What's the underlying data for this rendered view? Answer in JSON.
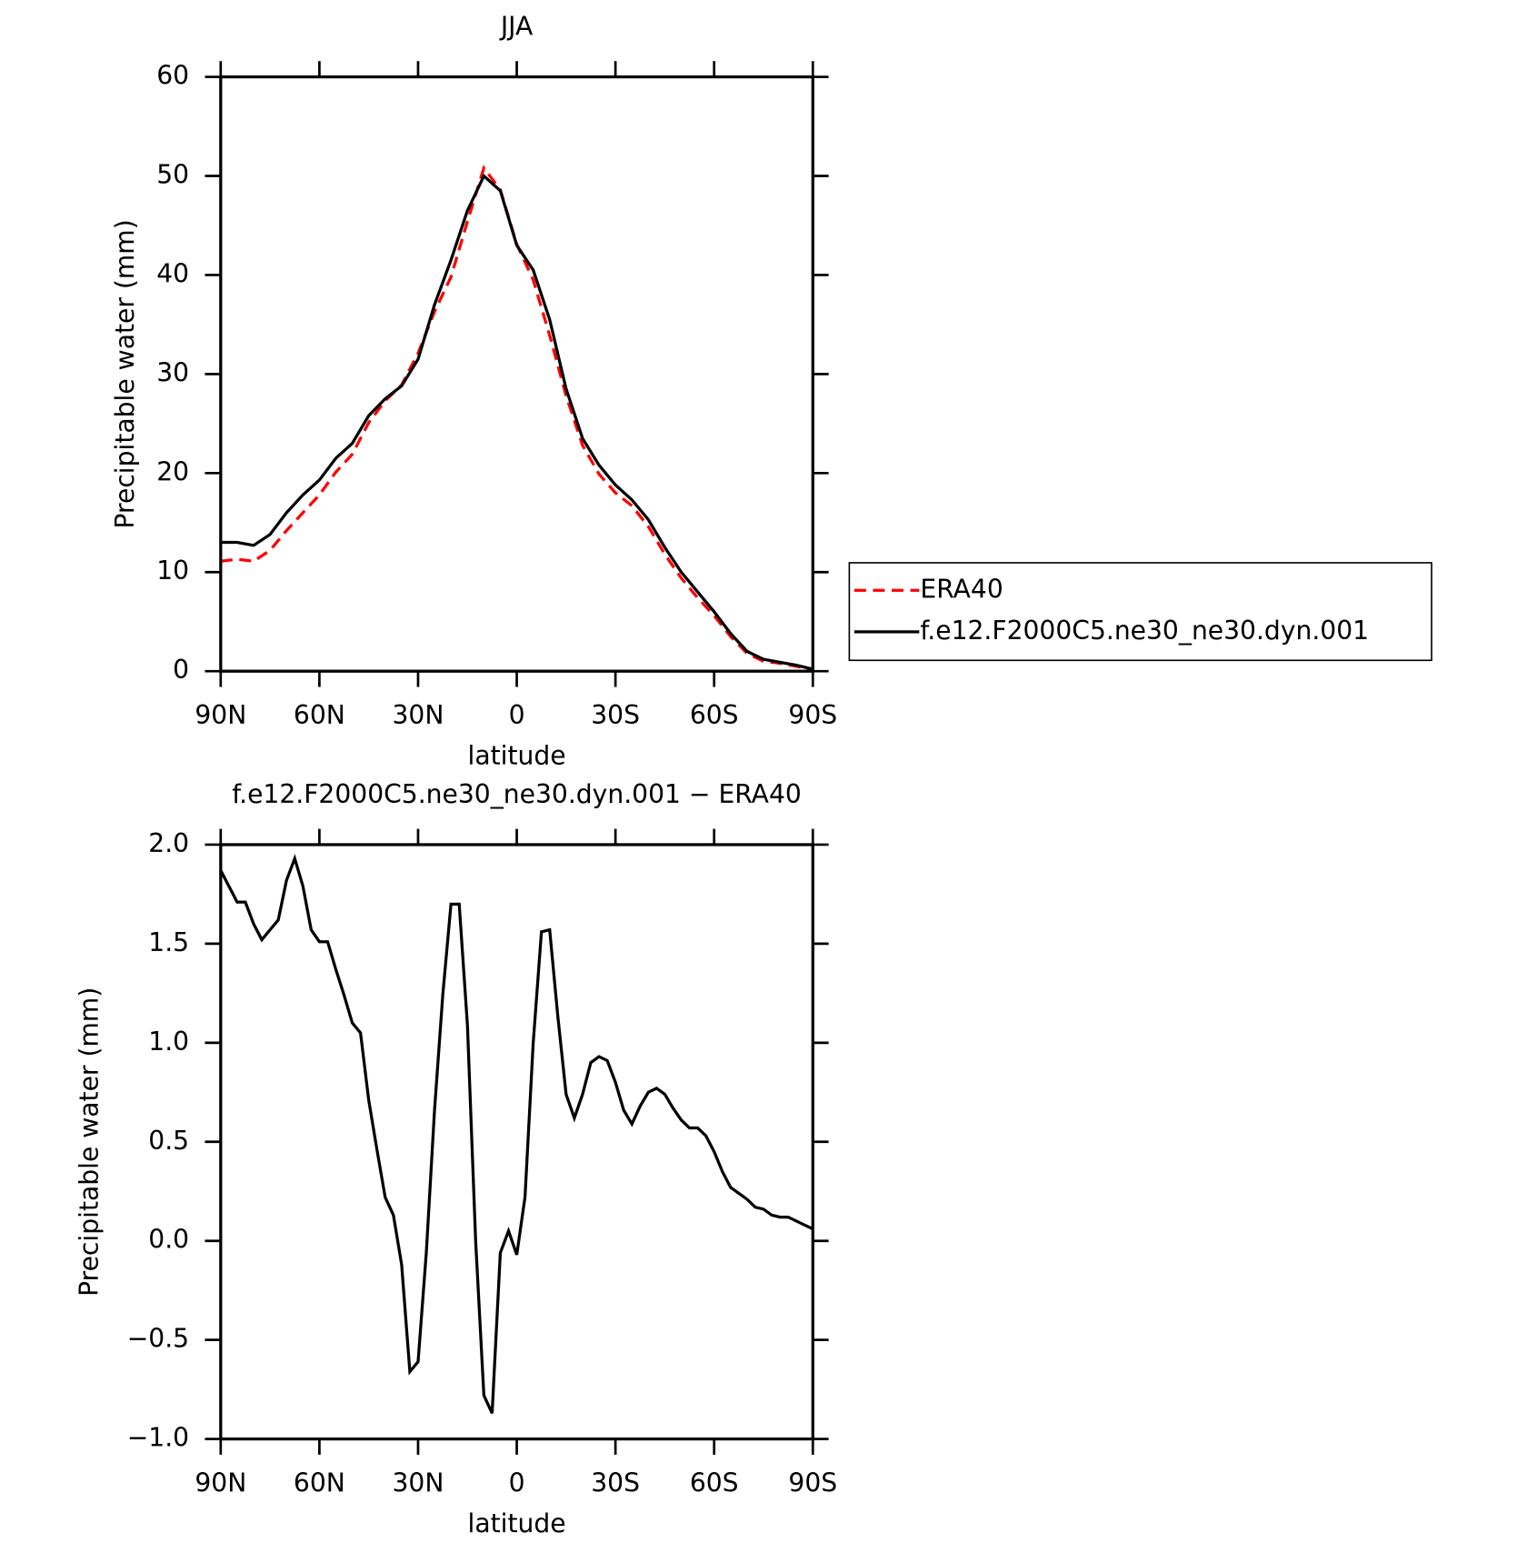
{
  "chart_data": [
    {
      "type": "line",
      "title": "JJA",
      "xlabel": "latitude",
      "ylabel": "Precipitable water (mm)",
      "x": [
        90,
        85,
        80,
        75,
        70,
        65,
        60,
        55,
        50,
        45,
        40,
        35,
        30,
        25,
        20,
        15,
        10,
        5,
        0,
        -5,
        -10,
        -15,
        -20,
        -25,
        -30,
        -35,
        -40,
        -45,
        -50,
        -55,
        -60,
        -65,
        -70,
        -75,
        -80,
        -85,
        -90
      ],
      "series": [
        {
          "name": "ERA40",
          "color": "#ff0000",
          "linestyle": "dashed",
          "values": [
            11.1,
            11.3,
            11.1,
            12.2,
            14.2,
            16.0,
            17.8,
            20.1,
            21.9,
            25.1,
            27.3,
            28.9,
            32.1,
            36.3,
            39.8,
            45.4,
            50.8,
            48.6,
            43.1,
            39.5,
            33.9,
            27.8,
            22.8,
            19.9,
            18.0,
            16.7,
            14.6,
            11.8,
            9.4,
            7.4,
            5.6,
            3.5,
            1.8,
            1.0,
            0.8,
            0.5,
            0.1
          ]
        },
        {
          "name": "f.e12.F2000C5.ne30_ne30.dyn.001",
          "color": "#000000",
          "linestyle": "solid",
          "values": [
            13.0,
            13.0,
            12.7,
            13.8,
            16.0,
            17.8,
            19.3,
            21.5,
            23.0,
            25.8,
            27.5,
            28.8,
            31.5,
            37.0,
            41.5,
            46.5,
            50.0,
            48.5,
            43.0,
            40.5,
            35.5,
            28.5,
            23.5,
            20.8,
            18.8,
            17.3,
            15.3,
            12.5,
            10.0,
            8.0,
            6.0,
            3.8,
            2.0,
            1.2,
            0.9,
            0.6,
            0.2
          ]
        }
      ],
      "xlim": [
        90,
        -90
      ],
      "xticks": [
        {
          "value": 90,
          "label": "90N"
        },
        {
          "value": 60,
          "label": "60N"
        },
        {
          "value": 30,
          "label": "30N"
        },
        0,
        {
          "value": -30,
          "label": "30S"
        },
        {
          "value": -60,
          "label": "60S"
        },
        {
          "value": -90,
          "label": "90S"
        }
      ],
      "ylim": [
        0,
        60
      ],
      "yticks": [
        0,
        10,
        20,
        30,
        40,
        50,
        60
      ],
      "legend": "right"
    },
    {
      "type": "line",
      "title": "f.e12.F2000C5.ne30_ne30.dyn.001 − ERA40",
      "xlabel": "latitude",
      "ylabel": "Precipitable water (mm)",
      "x": [
        90,
        87.5,
        85,
        82.5,
        80,
        77.5,
        75,
        72.5,
        70,
        67.5,
        65,
        62.5,
        60,
        57.5,
        55,
        52.5,
        50,
        47.5,
        45,
        42.5,
        40,
        37.5,
        35,
        32.5,
        30,
        27.5,
        25,
        22.5,
        20,
        17.5,
        15,
        12.5,
        10,
        7.5,
        5,
        2.5,
        0,
        -2.5,
        -5,
        -7.5,
        -10,
        -12.5,
        -15,
        -17.5,
        -20,
        -22.5,
        -25,
        -27.5,
        -30,
        -32.5,
        -35,
        -37.5,
        -40,
        -42.5,
        -45,
        -47.5,
        -50,
        -52.5,
        -55,
        -57.5,
        -60,
        -62.5,
        -65,
        -67.5,
        -70,
        -72.5,
        -75,
        -77.5,
        -80,
        -82.5,
        -85,
        -87.5,
        -90
      ],
      "series": [
        {
          "color": "#000000",
          "linestyle": "solid",
          "values": [
            1.87,
            1.79,
            1.71,
            1.71,
            1.6,
            1.52,
            1.57,
            1.62,
            1.82,
            1.93,
            1.79,
            1.57,
            1.51,
            1.51,
            1.37,
            1.24,
            1.1,
            1.05,
            0.71,
            0.46,
            0.22,
            0.13,
            -0.12,
            -0.66,
            -0.61,
            -0.06,
            0.66,
            1.24,
            1.7,
            1.7,
            1.09,
            0.0,
            -0.78,
            -0.87,
            -0.06,
            0.05,
            -0.07,
            0.22,
            1.0,
            1.56,
            1.57,
            1.13,
            0.74,
            0.62,
            0.74,
            0.9,
            0.93,
            0.91,
            0.8,
            0.66,
            0.59,
            0.68,
            0.75,
            0.77,
            0.74,
            0.67,
            0.61,
            0.57,
            0.57,
            0.53,
            0.45,
            0.35,
            0.27,
            0.24,
            0.21,
            0.17,
            0.16,
            0.13,
            0.12,
            0.12,
            0.1,
            0.08,
            0.06
          ]
        }
      ],
      "xlim": [
        90,
        -90
      ],
      "xticks": [
        {
          "value": 90,
          "label": "90N"
        },
        {
          "value": 60,
          "label": "60N"
        },
        {
          "value": 30,
          "label": "30N"
        },
        0,
        {
          "value": -30,
          "label": "30S"
        },
        {
          "value": -60,
          "label": "60S"
        },
        {
          "value": -90,
          "label": "90S"
        }
      ],
      "ylim": [
        -1,
        2
      ],
      "yticks": [
        {
          "value": -1,
          "label": "−1.0"
        },
        {
          "value": -0.5,
          "label": "−0.5"
        },
        {
          "value": 0,
          "label": "0.0"
        },
        {
          "value": 0.5,
          "label": "0.5"
        },
        {
          "value": 1,
          "label": "1.0"
        },
        {
          "value": 1.5,
          "label": "1.5"
        },
        {
          "value": 2,
          "label": "2.0"
        }
      ]
    }
  ]
}
